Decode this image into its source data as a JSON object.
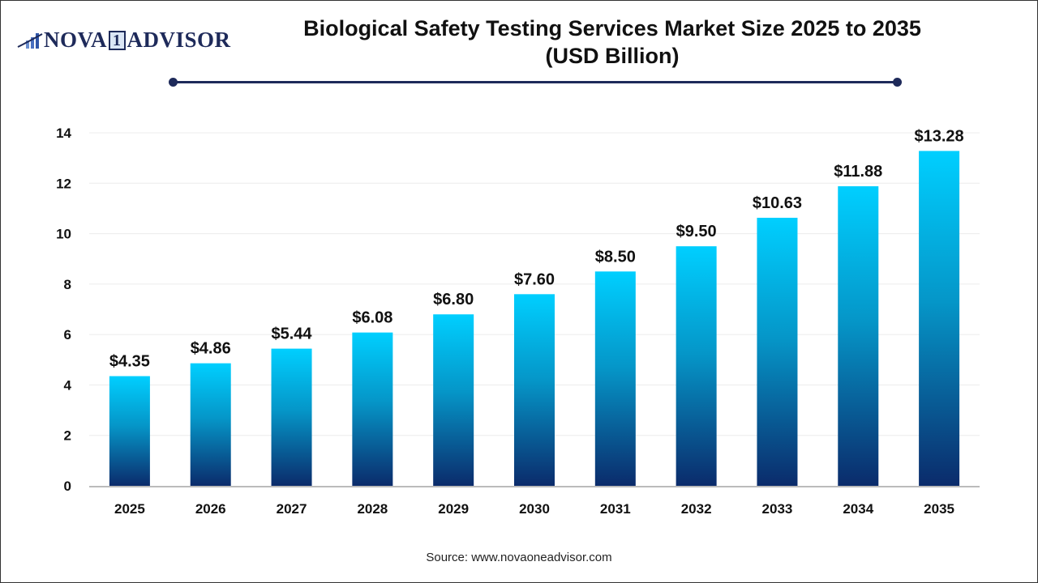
{
  "logo": {
    "text_left": "NOVA",
    "text_mid": "1",
    "text_right": "ADVISOR"
  },
  "title_line1": "Biological Safety Testing Services Market Size 2025 to 2035",
  "title_line2": "(USD Billion)",
  "source": "Source: www.novaoneadvisor.com",
  "colors": {
    "bar_top": "#00cfff",
    "bar_bottom": "#0b2b6b",
    "accent": "#1e2a5a"
  },
  "chart_data": {
    "type": "bar",
    "title": "Biological Safety Testing Services Market Size 2025 to 2035 (USD Billion)",
    "categories": [
      "2025",
      "2026",
      "2027",
      "2028",
      "2029",
      "2030",
      "2031",
      "2032",
      "2033",
      "2034",
      "2035"
    ],
    "values": [
      4.35,
      4.86,
      5.44,
      6.08,
      6.8,
      7.6,
      8.5,
      9.5,
      10.63,
      11.88,
      13.28
    ],
    "labels": [
      "$4.35",
      "$4.86",
      "$5.44",
      "$6.08",
      "$6.80",
      "$7.60",
      "$8.50",
      "$9.50",
      "$10.63",
      "$11.88",
      "$13.28"
    ],
    "yticks": [
      0,
      2,
      4,
      6,
      8,
      10,
      12,
      14
    ],
    "ylim": [
      0,
      14
    ],
    "grid": true,
    "xlabel": "",
    "ylabel": ""
  }
}
